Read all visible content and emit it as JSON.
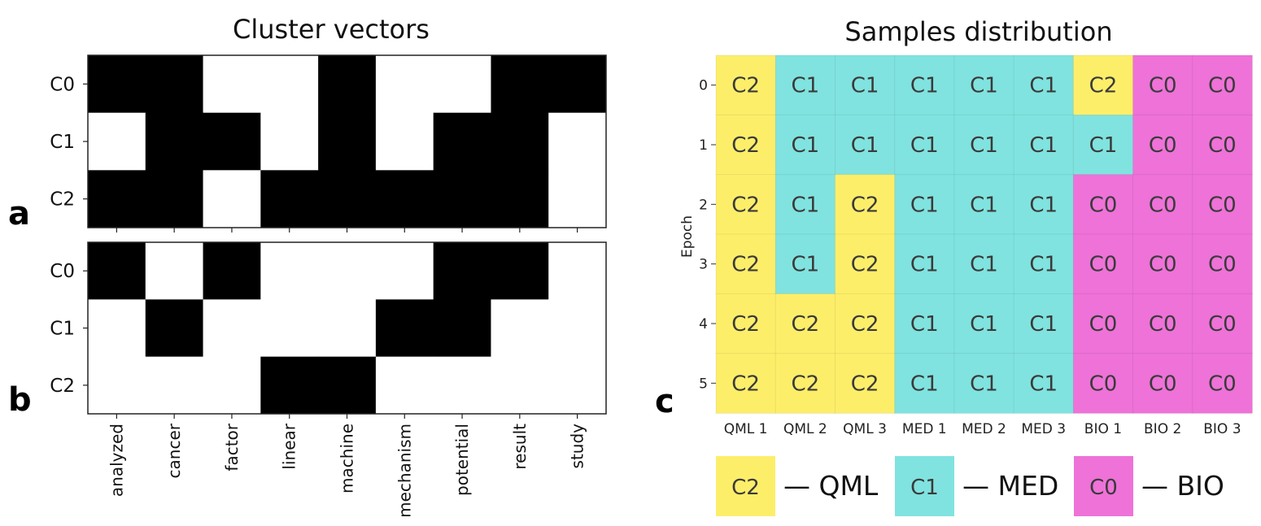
{
  "panel_letters": {
    "a": "a",
    "b": "b",
    "c": "c"
  },
  "colors": {
    "C0": "#ee72d8",
    "C1": "#80e3df",
    "C2": "#fdee6a",
    "on": "#000000",
    "off": "#ffffff"
  },
  "chart_data": [
    {
      "type": "heatmap",
      "title": "Cluster vectors",
      "panel": "a",
      "x_categories": [
        "analyzed",
        "cancer",
        "factor",
        "linear",
        "machine",
        "mechanism",
        "potential",
        "result",
        "study"
      ],
      "y_categories": [
        "C0",
        "C1",
        "C2"
      ],
      "values": [
        [
          1,
          1,
          0,
          0,
          1,
          0,
          0,
          1,
          1
        ],
        [
          0,
          1,
          1,
          0,
          1,
          0,
          1,
          1,
          0
        ],
        [
          1,
          1,
          0,
          1,
          1,
          1,
          1,
          1,
          0
        ]
      ]
    },
    {
      "type": "heatmap",
      "panel": "b",
      "x_categories": [
        "analyzed",
        "cancer",
        "factor",
        "linear",
        "machine",
        "mechanism",
        "potential",
        "result",
        "study"
      ],
      "y_categories": [
        "C0",
        "C1",
        "C2"
      ],
      "values": [
        [
          1,
          0,
          1,
          0,
          0,
          0,
          1,
          1,
          0
        ],
        [
          0,
          1,
          0,
          0,
          0,
          1,
          1,
          0,
          0
        ],
        [
          0,
          0,
          0,
          1,
          1,
          0,
          0,
          0,
          0
        ]
      ]
    },
    {
      "type": "heatmap",
      "title": "Samples distribution",
      "panel": "c",
      "ylabel": "Epoch",
      "x_categories": [
        "QML 1",
        "QML 2",
        "QML 3",
        "MED 1",
        "MED 2",
        "MED 3",
        "BIO 1",
        "BIO 2",
        "BIO 3"
      ],
      "y_categories": [
        "0",
        "1",
        "2",
        "3",
        "4",
        "5"
      ],
      "values": [
        [
          "C2",
          "C1",
          "C1",
          "C1",
          "C1",
          "C1",
          "C2",
          "C0",
          "C0"
        ],
        [
          "C2",
          "C1",
          "C1",
          "C1",
          "C1",
          "C1",
          "C1",
          "C0",
          "C0"
        ],
        [
          "C2",
          "C1",
          "C2",
          "C1",
          "C1",
          "C1",
          "C0",
          "C0",
          "C0"
        ],
        [
          "C2",
          "C1",
          "C2",
          "C1",
          "C1",
          "C1",
          "C0",
          "C0",
          "C0"
        ],
        [
          "C2",
          "C2",
          "C2",
          "C1",
          "C1",
          "C1",
          "C0",
          "C0",
          "C0"
        ],
        [
          "C2",
          "C2",
          "C2",
          "C1",
          "C1",
          "C1",
          "C0",
          "C0",
          "C0"
        ]
      ],
      "legend": [
        {
          "cluster": "C2",
          "label": "— QML"
        },
        {
          "cluster": "C1",
          "label": "— MED"
        },
        {
          "cluster": "C0",
          "label": "— BIO"
        }
      ]
    }
  ]
}
